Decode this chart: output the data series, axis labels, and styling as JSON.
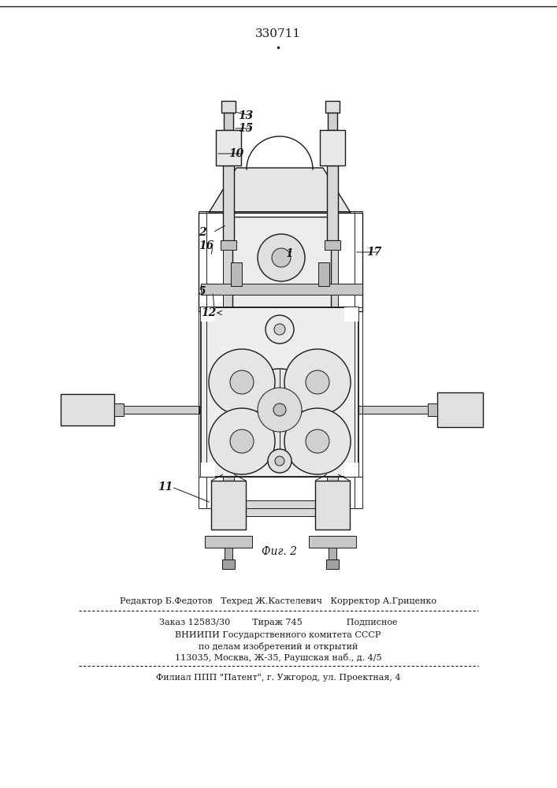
{
  "patent_number": "330711",
  "fig_label": "Фиг. 2",
  "editor_line": "Редактор Б.Федотов   Техред Ж.Кастелевич   Корректор А.Гриценко",
  "order_line": "Заказ 12583/30        Тираж 745                Подписное",
  "vniippi_line1": "ВНИИПИ Государственного комитета СССР",
  "vniippi_line2": "по делам изобретений и открытий",
  "vniippi_line3": "113035, Москва, Ж-35, Раушская наб., д. 4/5",
  "filial_line": "Филиал ППП \"Патент\", г. Ужгород, ул. Проектная, 4",
  "bg_color": "#ffffff",
  "text_color": "#000000"
}
